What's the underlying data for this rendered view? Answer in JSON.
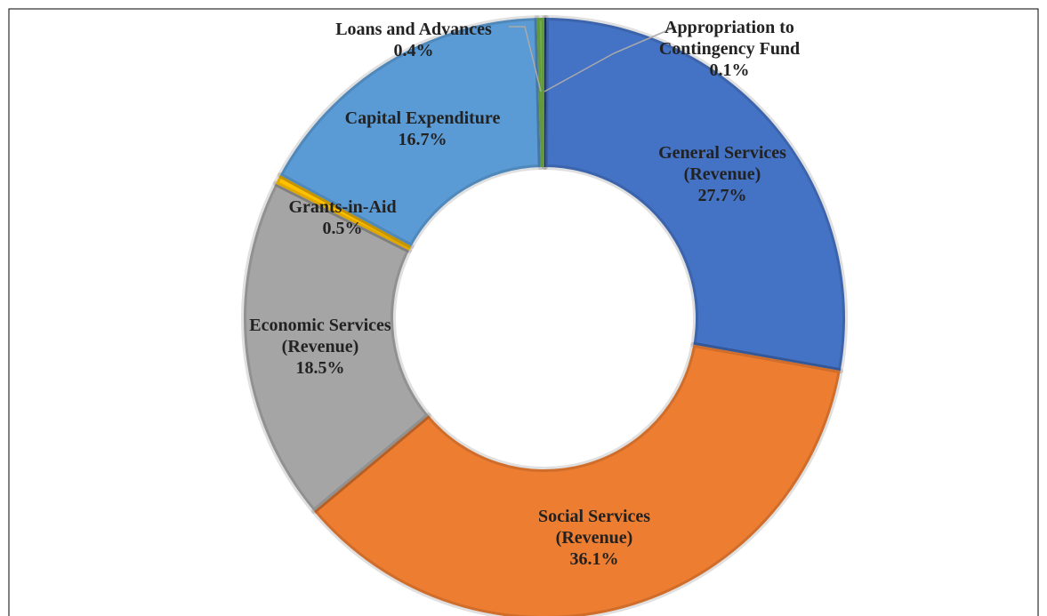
{
  "chart_data": {
    "type": "donut",
    "categories": [
      "Appropriation to Contingency Fund",
      "General Services (Revenue)",
      "Social Services (Revenue)",
      "Economic Services (Revenue)",
      "Grants-in-Aid",
      "Capital Expenditure",
      "Loans and Advances"
    ],
    "values": [
      0.1,
      27.7,
      36.1,
      18.5,
      0.5,
      16.7,
      0.4
    ],
    "value_labels": [
      "0.1%",
      "27.7%",
      "36.1%",
      "18.5%",
      "0.5%",
      "16.7%",
      "0.4%"
    ],
    "colors": [
      "#264478",
      "#4472c4",
      "#ed7d31",
      "#a5a5a5",
      "#ffc000",
      "#5b9bd5",
      "#70ad47"
    ]
  }
}
